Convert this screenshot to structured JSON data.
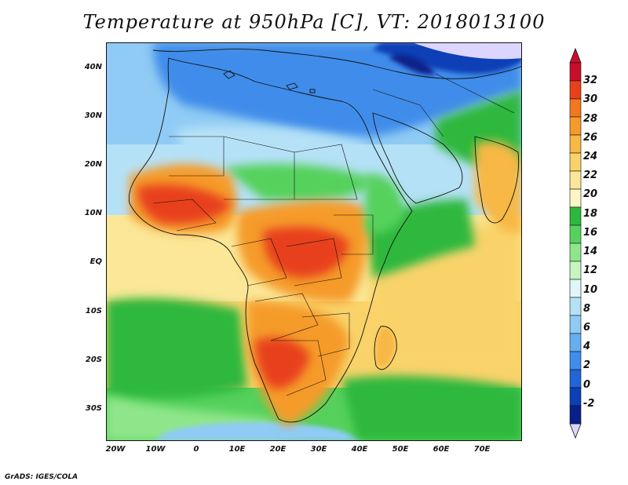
{
  "title": "Temperature at 950hPa [C], VT: 2018013100",
  "footer": "GrADS: IGES/COLA",
  "lat_labels": [
    "40N",
    "30N",
    "20N",
    "10N",
    "EQ",
    "10S",
    "20S",
    "30S"
  ],
  "lat_values": [
    40,
    30,
    20,
    10,
    0,
    -10,
    -20,
    -30
  ],
  "lon_labels": [
    "20W",
    "10W",
    "0",
    "10E",
    "20E",
    "30E",
    "40E",
    "50E",
    "60E",
    "70E"
  ],
  "lon_values": [
    -20,
    -10,
    0,
    10,
    20,
    30,
    40,
    50,
    60,
    70
  ],
  "extent": {
    "lon_min": -22,
    "lon_max": 79,
    "lat_min": -37,
    "lat_max": 45
  },
  "colorbar": {
    "labels": [
      "32",
      "30",
      "28",
      "26",
      "24",
      "22",
      "20",
      "18",
      "16",
      "14",
      "12",
      "10",
      "8",
      "6",
      "4",
      "2",
      "0",
      "-2"
    ],
    "colors": [
      "#c8102e",
      "#e8401a",
      "#f2781e",
      "#f59b2a",
      "#f7b845",
      "#f9d36a",
      "#fbe797",
      "#fdf5c6",
      "#2db83d",
      "#55d15c",
      "#8fe68a",
      "#c6f5c0",
      "#e0f6f8",
      "#b5e1f7",
      "#8fcbf4",
      "#65aef0",
      "#3f8cea",
      "#2165d6",
      "#0d3fb6",
      "#082089"
    ],
    "top_triangle": "#c8102e",
    "bottom_triangle": "#dcd6ff"
  },
  "colors": {
    "hot": "#e8401a",
    "warm": "#f59b2a",
    "yellow": "#f9d36a",
    "pale_yellow": "#fbe797",
    "green": "#2db83d",
    "light_green": "#8fe68a",
    "cyan": "#e0f6f8",
    "light_blue": "#b5e1f7",
    "blue": "#65aef0",
    "dark_blue": "#2165d6",
    "navy": "#082089",
    "lavender": "#dcd6ff"
  }
}
